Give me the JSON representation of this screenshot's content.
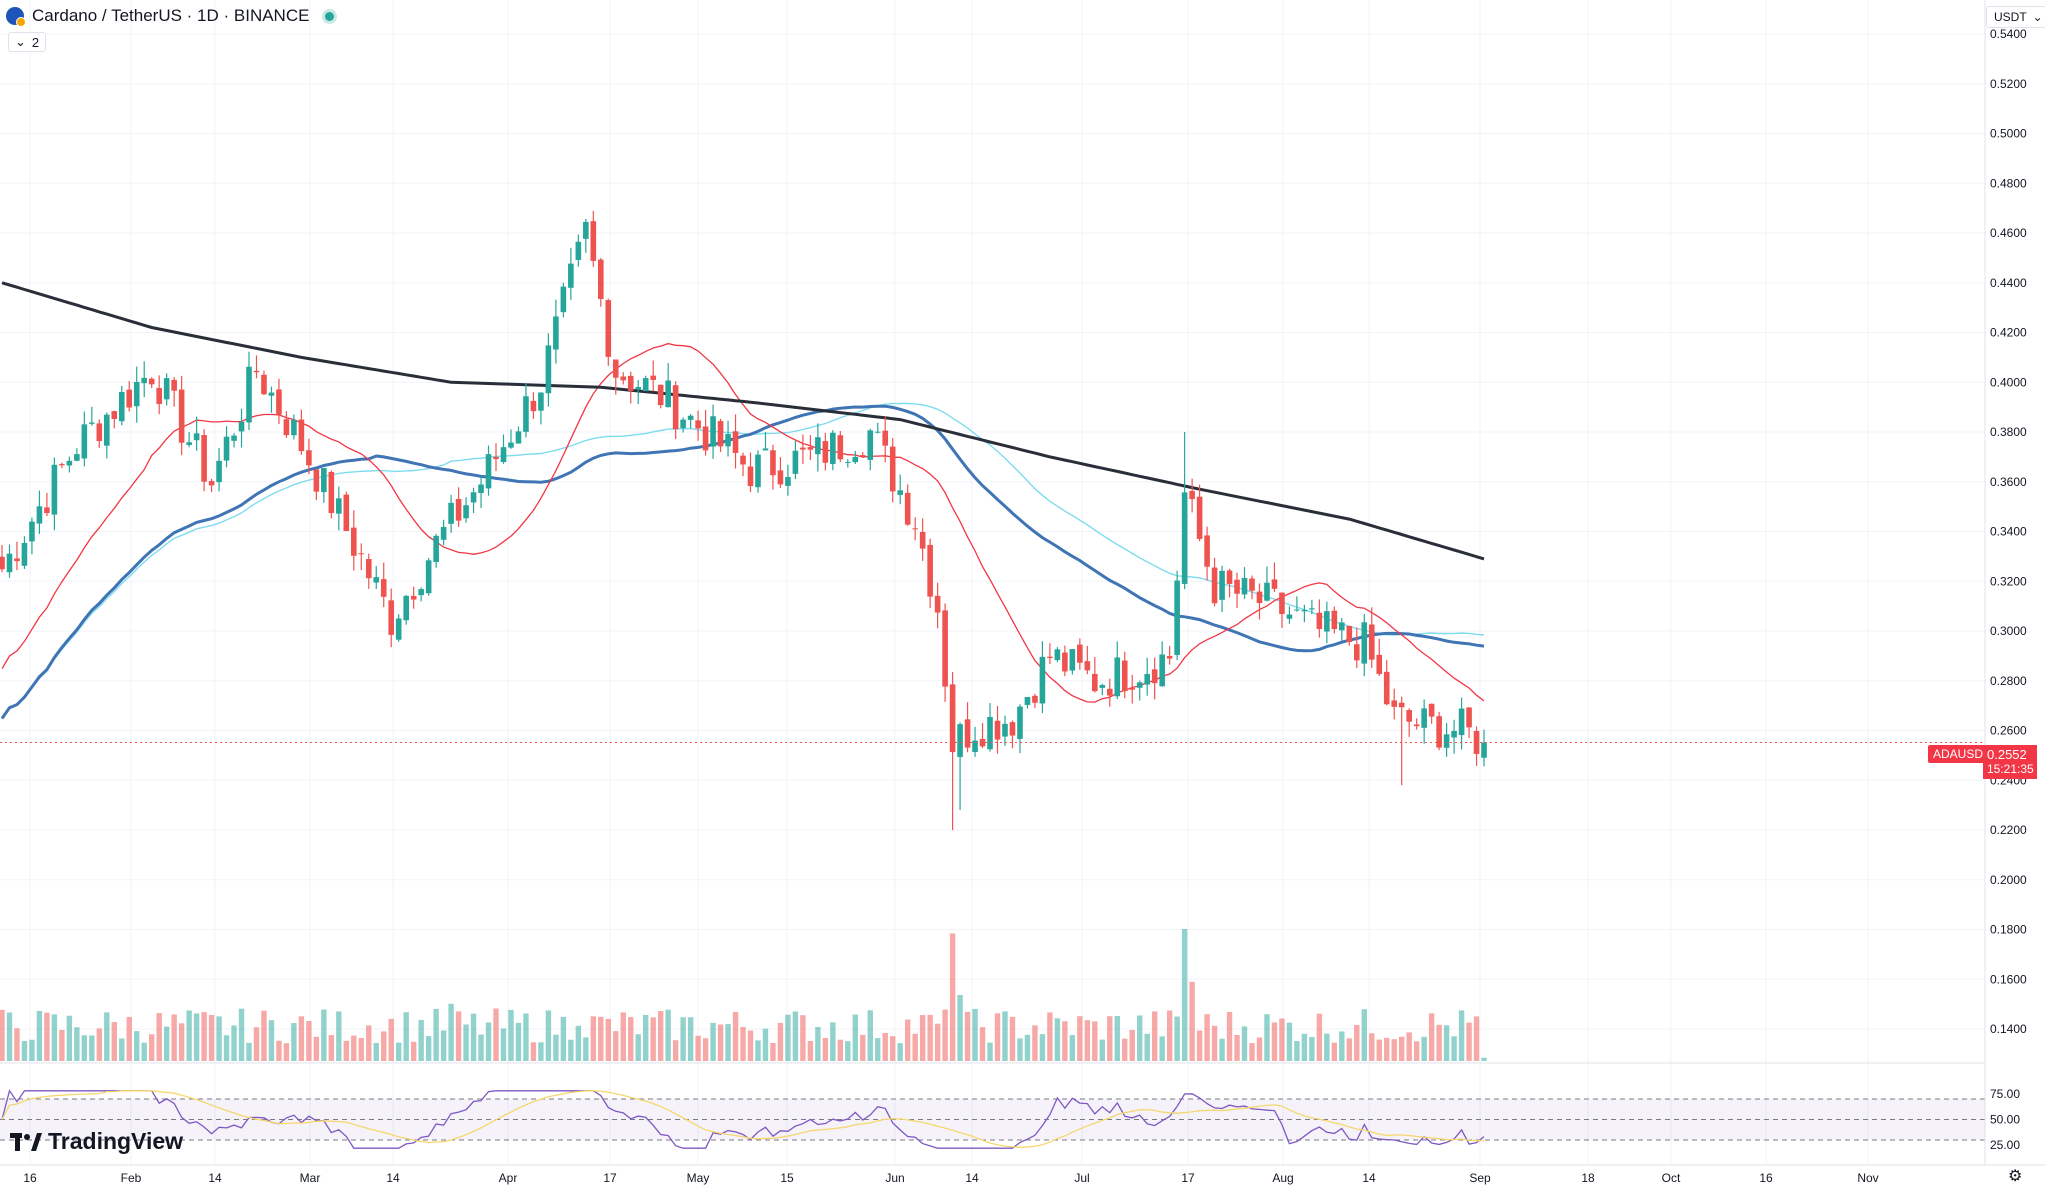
{
  "header": {
    "symbol_title": "Cardano / TetherUS · 1D · BINANCE",
    "indicator_count": "2",
    "currency": "USDT"
  },
  "price_axis": {
    "labels": [
      "0.5400",
      "0.5200",
      "0.5000",
      "0.4800",
      "0.4600",
      "0.4400",
      "0.4200",
      "0.4000",
      "0.3800",
      "0.3600",
      "0.3400",
      "0.3200",
      "0.3000",
      "0.2800",
      "0.2600",
      "0.2400",
      "0.2200",
      "0.2000",
      "0.1800",
      "0.1600",
      "0.1400"
    ]
  },
  "rsi_axis": {
    "labels": [
      "75.00",
      "50.00",
      "25.00"
    ]
  },
  "time_axis": {
    "labels": [
      "16",
      "Feb",
      "14",
      "Mar",
      "14",
      "Apr",
      "17",
      "May",
      "15",
      "Jun",
      "14",
      "Jul",
      "17",
      "Aug",
      "14",
      "Sep",
      "18",
      "Oct",
      "16",
      "Nov"
    ]
  },
  "last_price": {
    "symbol": "ADAUSDT",
    "value": "0.2552",
    "countdown": "15:21:35"
  },
  "colors": {
    "up": "#26a69a",
    "down": "#ef5350",
    "ma_fast": "#f23645",
    "ma_mid": "#3f74b5",
    "ma_light": "#7fdcef",
    "ma_slow": "#2a2e39",
    "rsi": "#7e57c2",
    "rsi_ma": "#f5d76e"
  },
  "chart_data": {
    "type": "candlestick",
    "symbol": "Cardano / TetherUS",
    "interval": "1D",
    "exchange": "BINANCE",
    "ylim": [
      0.13,
      0.545
    ],
    "rsi_levels": [
      70,
      50,
      30
    ],
    "anchors": [
      {
        "i": 0,
        "p": 0.325
      },
      {
        "i": 10,
        "p": 0.375
      },
      {
        "i": 20,
        "p": 0.405
      },
      {
        "i": 28,
        "p": 0.36
      },
      {
        "i": 34,
        "p": 0.405
      },
      {
        "i": 40,
        "p": 0.375
      },
      {
        "i": 47,
        "p": 0.335
      },
      {
        "i": 52,
        "p": 0.305
      },
      {
        "i": 58,
        "p": 0.335
      },
      {
        "i": 64,
        "p": 0.36
      },
      {
        "i": 72,
        "p": 0.4
      },
      {
        "i": 78,
        "p": 0.46
      },
      {
        "i": 82,
        "p": 0.405
      },
      {
        "i": 88,
        "p": 0.395
      },
      {
        "i": 94,
        "p": 0.38
      },
      {
        "i": 100,
        "p": 0.365
      },
      {
        "i": 108,
        "p": 0.37
      },
      {
        "i": 116,
        "p": 0.38
      },
      {
        "i": 122,
        "p": 0.345
      },
      {
        "i": 125,
        "p": 0.31
      },
      {
        "i": 127,
        "p": 0.255
      },
      {
        "i": 130,
        "p": 0.262
      },
      {
        "i": 135,
        "p": 0.265
      },
      {
        "i": 140,
        "p": 0.29
      },
      {
        "i": 146,
        "p": 0.28
      },
      {
        "i": 152,
        "p": 0.285
      },
      {
        "i": 156,
        "p": 0.29
      },
      {
        "i": 158,
        "p": 0.355
      },
      {
        "i": 162,
        "p": 0.318
      },
      {
        "i": 170,
        "p": 0.31
      },
      {
        "i": 176,
        "p": 0.3
      },
      {
        "i": 182,
        "p": 0.295
      },
      {
        "i": 186,
        "p": 0.265
      },
      {
        "i": 190,
        "p": 0.262
      },
      {
        "i": 195,
        "p": 0.26
      },
      {
        "i": 198,
        "p": 0.2552
      }
    ],
    "spikes": [
      {
        "i": 127,
        "low": 0.22
      },
      {
        "i": 128,
        "low": 0.228
      },
      {
        "i": 158,
        "high": 0.38
      },
      {
        "i": 187,
        "low": 0.238
      }
    ],
    "ma_slow_points": [
      {
        "i": 0,
        "p": 0.44
      },
      {
        "i": 20,
        "p": 0.422
      },
      {
        "i": 40,
        "p": 0.41
      },
      {
        "i": 60,
        "p": 0.4
      },
      {
        "i": 80,
        "p": 0.398
      },
      {
        "i": 100,
        "p": 0.392
      },
      {
        "i": 120,
        "p": 0.385
      },
      {
        "i": 140,
        "p": 0.37
      },
      {
        "i": 160,
        "p": 0.357
      },
      {
        "i": 180,
        "p": 0.345
      },
      {
        "i": 198,
        "p": 0.329
      }
    ],
    "volume_spikes": [
      {
        "i": 127,
        "v": 5.8
      },
      {
        "i": 128,
        "v": 3.0
      },
      {
        "i": 158,
        "v": 6.0
      },
      {
        "i": 159,
        "v": 3.6
      },
      {
        "i": 60,
        "v": 2.6
      },
      {
        "i": 77,
        "v": 1.6
      },
      {
        "i": 146,
        "v": 1.8
      }
    ]
  }
}
